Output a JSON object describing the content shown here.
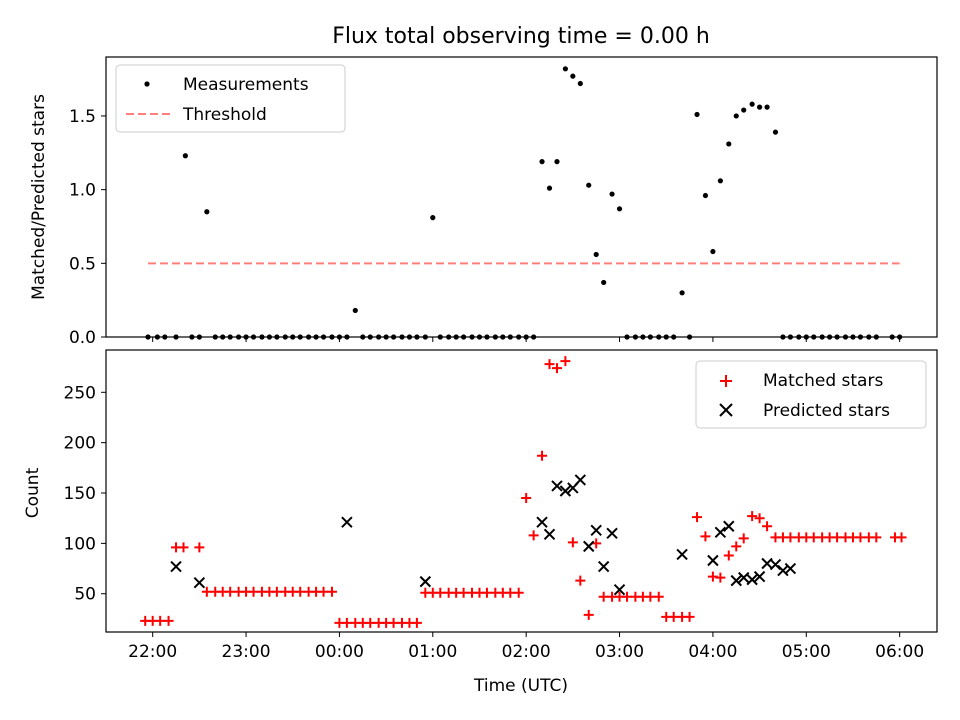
{
  "title": "Flux total observing time = 0.00 h",
  "colors": {
    "measurement": "#000000",
    "threshold": "#ff7f7f",
    "matched": "#ff0000",
    "predicted": "#000000"
  },
  "chart_data": [
    {
      "type": "scatter",
      "name": "ratio",
      "ylabel": "Matched/Predicted stars",
      "xlabel": "",
      "ylim": [
        0,
        1.9
      ],
      "yticks": [
        0.0,
        0.5,
        1.0,
        1.5
      ],
      "ytick_labels": [
        "0.0",
        "0.5",
        "1.0",
        "1.5"
      ],
      "legend": {
        "position": "upper-left",
        "entries": [
          "Measurements",
          "Threshold"
        ]
      },
      "threshold": {
        "value": 0.5,
        "x_start": 21.95,
        "x_end": 30.0
      },
      "series": [
        {
          "name": "Measurements",
          "x": [
            21.95,
            22.05,
            22.13,
            22.25,
            22.35,
            22.42,
            22.5,
            22.58,
            22.67,
            22.75,
            22.83,
            22.92,
            23.0,
            23.08,
            23.17,
            23.25,
            23.33,
            23.42,
            23.5,
            23.58,
            23.67,
            23.75,
            23.83,
            23.92,
            24.0,
            24.08,
            24.17,
            24.25,
            24.33,
            24.42,
            24.5,
            24.58,
            24.67,
            24.75,
            24.83,
            24.92,
            25.0,
            25.08,
            25.17,
            25.25,
            25.33,
            25.42,
            25.5,
            25.58,
            25.67,
            25.75,
            25.83,
            25.92,
            26.0,
            26.08,
            26.17,
            26.25,
            26.33,
            26.42,
            26.5,
            26.58,
            26.67,
            26.75,
            26.83,
            26.92,
            27.0,
            27.08,
            27.17,
            27.25,
            27.33,
            27.42,
            27.5,
            27.58,
            27.67,
            27.75,
            27.83,
            27.92,
            28.0,
            28.08,
            28.17,
            28.25,
            28.33,
            28.42,
            28.5,
            28.58,
            28.67,
            28.75,
            28.83,
            28.92,
            29.0,
            29.08,
            29.17,
            29.25,
            29.33,
            29.42,
            29.5,
            29.58,
            29.67,
            29.75,
            29.92,
            30.0
          ],
          "y": [
            0,
            0,
            0,
            0,
            1.23,
            0,
            0,
            0.85,
            0,
            0,
            0,
            0,
            0,
            0,
            0,
            0,
            0,
            0,
            0,
            0,
            0,
            0,
            0,
            0,
            0,
            0,
            0.18,
            0,
            0,
            0,
            0,
            0,
            0,
            0,
            0,
            0,
            0.81,
            0,
            0,
            0,
            0,
            0,
            0,
            0,
            0,
            0,
            0,
            0,
            0,
            0,
            1.19,
            1.01,
            1.19,
            1.82,
            1.77,
            1.72,
            1.03,
            0.56,
            0.37,
            0.97,
            0.87,
            0,
            0,
            0,
            0,
            0,
            0,
            0,
            0.3,
            0,
            1.51,
            0.96,
            0.58,
            1.06,
            1.31,
            1.5,
            1.54,
            1.58,
            1.56,
            1.56,
            1.39,
            0,
            0,
            0,
            0,
            0,
            0,
            0,
            0,
            0,
            0,
            0,
            0,
            0,
            0,
            0
          ]
        }
      ]
    },
    {
      "type": "scatter",
      "name": "counts",
      "ylabel": "Count",
      "xlabel": "Time (UTC)",
      "ylim": [
        12,
        292
      ],
      "yticks": [
        50,
        100,
        150,
        200,
        250
      ],
      "ytick_labels": [
        "50",
        "100",
        "150",
        "200",
        "250"
      ],
      "xlim": [
        21.5,
        30.4
      ],
      "xticks": [
        22,
        23,
        24,
        25,
        26,
        27,
        28,
        29,
        30
      ],
      "xtick_labels": [
        "22:00",
        "23:00",
        "00:00",
        "01:00",
        "02:00",
        "03:00",
        "04:00",
        "05:00",
        "06:00"
      ],
      "legend": {
        "position": "upper-right",
        "entries": [
          "Matched stars",
          "Predicted stars"
        ]
      },
      "series": [
        {
          "name": "Matched stars",
          "x": [
            21.92,
            22.0,
            22.08,
            22.17,
            22.25,
            22.33,
            22.5,
            22.58,
            22.67,
            22.75,
            22.83,
            22.92,
            23.0,
            23.08,
            23.17,
            23.25,
            23.33,
            23.42,
            23.5,
            23.58,
            23.67,
            23.75,
            23.83,
            23.92,
            24.0,
            24.08,
            24.17,
            24.25,
            24.33,
            24.42,
            24.5,
            24.58,
            24.67,
            24.75,
            24.83,
            24.92,
            25.0,
            25.08,
            25.17,
            25.25,
            25.33,
            25.42,
            25.5,
            25.58,
            25.67,
            25.75,
            25.83,
            25.92,
            26.0,
            26.08,
            26.17,
            26.25,
            26.33,
            26.42,
            26.5,
            26.58,
            26.67,
            26.75,
            26.83,
            26.92,
            27.0,
            27.08,
            27.17,
            27.25,
            27.33,
            27.42,
            27.5,
            27.58,
            27.67,
            27.75,
            27.83,
            27.92,
            28.0,
            28.08,
            28.17,
            28.25,
            28.33,
            28.42,
            28.5,
            28.58,
            28.67,
            28.75,
            28.83,
            28.92,
            29.0,
            29.08,
            29.17,
            29.25,
            29.33,
            29.42,
            29.5,
            29.58,
            29.67,
            29.75,
            29.95,
            30.02
          ],
          "y": [
            23,
            23,
            23,
            23,
            96,
            96,
            96,
            52,
            52,
            52,
            52,
            52,
            52,
            52,
            52,
            52,
            52,
            52,
            52,
            52,
            52,
            52,
            52,
            52,
            21,
            21,
            21,
            21,
            21,
            21,
            21,
            21,
            21,
            21,
            21,
            51,
            51,
            51,
            51,
            51,
            51,
            51,
            51,
            51,
            51,
            51,
            51,
            51,
            145,
            108,
            187,
            278,
            274,
            281,
            101,
            63,
            29,
            100,
            47,
            47,
            47,
            47,
            47,
            47,
            47,
            47,
            27,
            27,
            27,
            27,
            126,
            107,
            67,
            66,
            88,
            97,
            105,
            127,
            125,
            117,
            106,
            106,
            106,
            106,
            106,
            106,
            106,
            106,
            106,
            106,
            106,
            106,
            106,
            106,
            106,
            106
          ]
        },
        {
          "name": "Predicted stars",
          "x": [
            22.25,
            22.5,
            24.08,
            24.92,
            26.17,
            26.25,
            26.33,
            26.42,
            26.5,
            26.58,
            26.67,
            26.75,
            26.83,
            26.92,
            27.0,
            27.67,
            28.0,
            28.08,
            28.17,
            28.25,
            28.33,
            28.42,
            28.5,
            28.58,
            28.67,
            28.75,
            28.83
          ],
          "y": [
            77,
            61,
            121,
            62,
            121,
            109,
            157,
            152,
            155,
            163,
            97,
            113,
            77,
            110,
            54,
            89,
            83,
            111,
            117,
            63,
            66,
            64,
            67,
            80,
            79,
            73,
            75
          ]
        }
      ]
    }
  ]
}
